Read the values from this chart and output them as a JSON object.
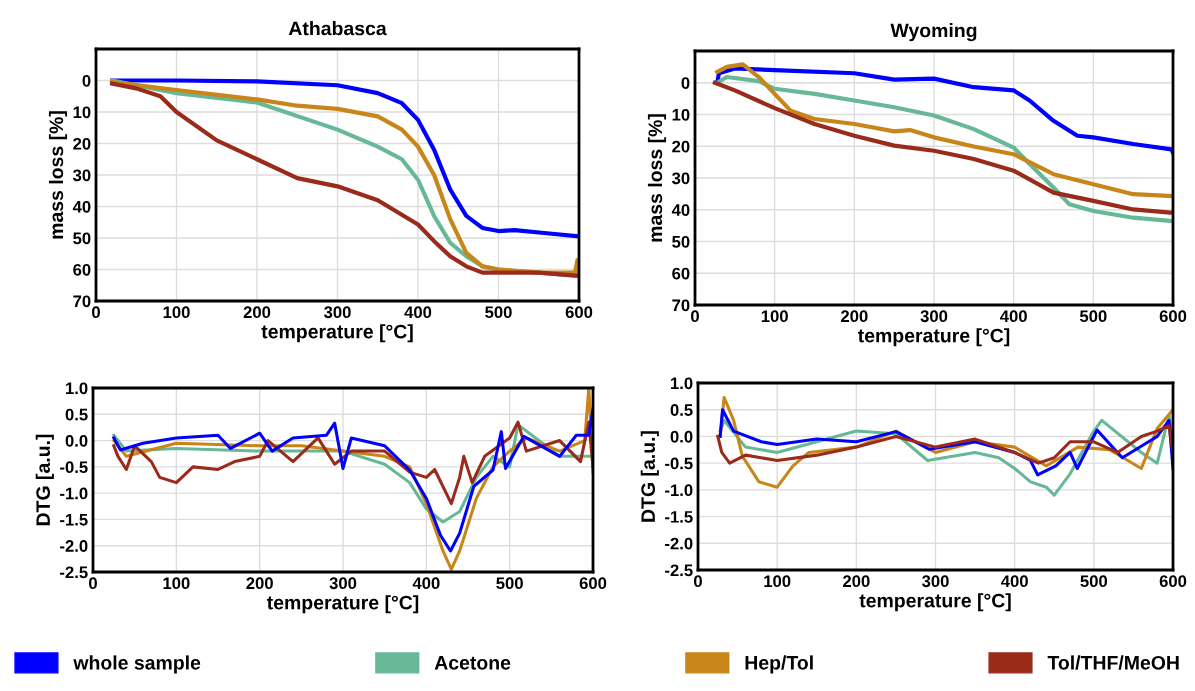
{
  "chart_data": [
    {
      "type": "line",
      "title": "Athabasca",
      "xlabel": "temperature [°C]",
      "ylabel": "mass loss [%]",
      "xlim": [
        0,
        600
      ],
      "xticks": [
        0,
        100,
        200,
        300,
        400,
        500,
        600
      ],
      "ylim": [
        70,
        -10
      ],
      "yticks": [
        0,
        10,
        20,
        30,
        40,
        50,
        60,
        70
      ],
      "grid": true,
      "legend": "bottom",
      "series": [
        {
          "name": "whole sample",
          "color": "#0000ff",
          "x": [
            20,
            100,
            200,
            300,
            350,
            380,
            400,
            420,
            440,
            460,
            480,
            500,
            520,
            560,
            600
          ],
          "values": [
            0,
            0,
            0.3,
            1.5,
            4,
            7.2,
            12.5,
            22,
            34.6,
            43,
            46.8,
            47.8,
            47.5,
            48.5,
            49.5
          ]
        },
        {
          "name": "Acetone",
          "color": "#66b896",
          "x": [
            20,
            100,
            200,
            300,
            350,
            380,
            400,
            420,
            440,
            460,
            480,
            500,
            600
          ],
          "values": [
            0,
            4,
            7,
            15.6,
            21,
            25,
            31.5,
            43,
            51.5,
            55.8,
            59,
            60,
            62
          ]
        },
        {
          "name": "Hep/Tol",
          "color": "#c8861a",
          "x": [
            20,
            100,
            200,
            250,
            300,
            350,
            380,
            400,
            420,
            440,
            460,
            480,
            500,
            550,
            595,
            598,
            600
          ],
          "values": [
            0.5,
            3,
            6,
            8,
            9,
            11.4,
            15.6,
            21,
            30,
            44,
            54.7,
            59,
            60,
            61,
            61,
            57,
            61
          ]
        },
        {
          "name": "Tol/THF/MeOH",
          "color": "#9a2a1a",
          "x": [
            20,
            50,
            80,
            100,
            150,
            200,
            250,
            300,
            350,
            400,
            420,
            440,
            460,
            480,
            500,
            550,
            600
          ],
          "values": [
            1,
            2.5,
            5,
            10,
            19,
            25,
            31,
            33.6,
            38,
            45.7,
            51,
            55.8,
            59,
            61,
            61,
            61,
            62
          ]
        }
      ]
    },
    {
      "type": "line",
      "title": "Wyoming",
      "xlabel": "temperature [°C]",
      "ylabel": "mass loss [%]",
      "xlim": [
        0,
        600
      ],
      "xticks": [
        0,
        100,
        200,
        300,
        400,
        500,
        600
      ],
      "ylim": [
        70,
        -10
      ],
      "yticks": [
        0,
        10,
        20,
        30,
        40,
        50,
        60,
        70
      ],
      "grid": true,
      "series": [
        {
          "color": "#0000ff",
          "x": [
            28,
            30,
            50,
            100,
            200,
            250,
            300,
            350,
            400,
            420,
            450,
            480,
            500,
            550,
            598,
            600
          ],
          "values": [
            0,
            -3,
            -4.5,
            -4,
            -3,
            -1,
            -1.3,
            1.4,
            2.4,
            5.6,
            12,
            16.7,
            17.2,
            19.3,
            21,
            22
          ]
        },
        {
          "color": "#66b896",
          "x": [
            28,
            40,
            80,
            100,
            150,
            200,
            250,
            300,
            350,
            400,
            420,
            450,
            470,
            500,
            550,
            600
          ],
          "values": [
            0,
            -1.8,
            -0.5,
            1.9,
            3.5,
            5.6,
            7.7,
            10.3,
            14.6,
            20.4,
            25.6,
            33,
            38.3,
            40.4,
            42.5,
            43.6
          ]
        },
        {
          "color": "#c8861a",
          "x": [
            28,
            40,
            60,
            80,
            100,
            120,
            150,
            200,
            250,
            270,
            300,
            350,
            400,
            450,
            500,
            550,
            600
          ],
          "values": [
            -3.4,
            -5,
            -5.8,
            -1.8,
            3.5,
            8.8,
            11.4,
            13,
            15.3,
            14.9,
            17.2,
            20.1,
            22.5,
            28.8,
            32,
            35.1,
            35.7
          ]
        },
        {
          "color": "#9a2a1a",
          "x": [
            25,
            50,
            100,
            150,
            200,
            250,
            300,
            350,
            400,
            450,
            500,
            550,
            600
          ],
          "values": [
            0,
            2.4,
            8,
            13,
            16.7,
            19.8,
            21.4,
            24,
            27.7,
            34.6,
            37.2,
            39.9,
            41
          ]
        }
      ]
    },
    {
      "type": "line",
      "xlabel": "temperature [°C]",
      "ylabel": "DTG [a.u.]",
      "xlim": [
        0,
        600
      ],
      "xticks": [
        0,
        100,
        200,
        300,
        400,
        500,
        600
      ],
      "ylim": [
        -2.5,
        1.0
      ],
      "yticks": [
        {
          "value": 1.0,
          "label": "1.0"
        },
        {
          "value": 0.5,
          "label": "0.5"
        },
        {
          "value": 0.0,
          "label": "0.0"
        },
        {
          "value": -0.5,
          "label": "-0.5"
        },
        {
          "value": -1.0,
          "label": "-1.0"
        },
        {
          "value": -1.5,
          "label": "-1.5"
        },
        {
          "value": -2.0,
          "label": "-2.0"
        },
        {
          "value": -2.5,
          "label": "-2.5"
        }
      ],
      "grid": true,
      "series": [
        {
          "color": "#66b896",
          "x": [
            25,
            40,
            100,
            200,
            300,
            350,
            380,
            400,
            420,
            430,
            440,
            460,
            480,
            500,
            510,
            560,
            600
          ],
          "values": [
            0.1,
            -0.2,
            -0.15,
            -0.2,
            -0.2,
            -0.45,
            -0.8,
            -1.3,
            -1.55,
            -1.45,
            -1.35,
            -0.7,
            -0.3,
            -0.5,
            0.3,
            -0.3,
            -0.3
          ]
        },
        {
          "color": "#c8861a",
          "x": [
            25,
            40,
            100,
            200,
            250,
            300,
            350,
            380,
            400,
            420,
            430,
            440,
            460,
            480,
            500,
            520,
            560,
            590,
            595,
            600
          ],
          "values": [
            0,
            -0.3,
            -0.05,
            -0.1,
            -0.1,
            -0.2,
            -0.3,
            -0.5,
            -1.2,
            -2.1,
            -2.45,
            -2.1,
            -1.1,
            -0.5,
            -0.2,
            0.05,
            -0.2,
            0.0,
            1.0,
            -0.6
          ]
        },
        {
          "color": "#9a2a1a",
          "x": [
            25,
            30,
            40,
            50,
            70,
            80,
            100,
            120,
            150,
            170,
            200,
            210,
            240,
            270,
            290,
            310,
            350,
            380,
            400,
            410,
            430,
            440,
            445,
            455,
            470,
            500,
            510,
            520,
            560,
            585,
            595,
            600
          ],
          "values": [
            -0.1,
            -0.3,
            -0.55,
            -0.1,
            -0.4,
            -0.7,
            -0.8,
            -0.5,
            -0.55,
            -0.4,
            -0.3,
            0.0,
            -0.4,
            0.05,
            -0.45,
            -0.2,
            -0.2,
            -0.6,
            -0.7,
            -0.55,
            -1.2,
            -0.7,
            -0.3,
            -0.8,
            -0.3,
            0.05,
            0.35,
            -0.2,
            0.0,
            -0.4,
            0.35,
            -0.5
          ]
        },
        {
          "color": "#0000ff",
          "x": [
            25,
            33,
            60,
            100,
            150,
            165,
            200,
            215,
            240,
            280,
            290,
            300,
            310,
            350,
            380,
            400,
            417,
            429,
            440,
            457,
            480,
            490,
            495,
            517,
            560,
            580,
            595,
            600
          ],
          "values": [
            0.05,
            -0.18,
            -0.05,
            0.05,
            0.1,
            -0.15,
            0.14,
            -0.2,
            0.05,
            0.1,
            0.33,
            -0.53,
            0.05,
            -0.1,
            -0.56,
            -1.1,
            -1.8,
            -2.1,
            -1.76,
            -0.87,
            -0.56,
            0.17,
            -0.53,
            0.08,
            -0.3,
            0.1,
            0.1,
            0.6
          ]
        }
      ]
    },
    {
      "type": "line",
      "xlabel": "temperature [°C]",
      "ylabel": "DTG [a.u.]",
      "xlim": [
        0,
        600
      ],
      "xticks": [
        0,
        100,
        200,
        300,
        400,
        500,
        600
      ],
      "ylim": [
        -2.5,
        1.0
      ],
      "yticks": [
        {
          "value": 1.0,
          "label": "1.0"
        },
        {
          "value": 0.5,
          "label": "0.5"
        },
        {
          "value": 0.0,
          "label": "0.0"
        },
        {
          "value": -0.5,
          "label": "-0.5"
        },
        {
          "value": -1.0,
          "label": "-1.0"
        },
        {
          "value": -1.5,
          "label": "-1.5"
        },
        {
          "value": -2.0,
          "label": "-2.0"
        },
        {
          "value": -2.5,
          "label": "-2.5"
        }
      ],
      "grid": true,
      "series": [
        {
          "color": "#66b896",
          "x": [
            28,
            33,
            60,
            100,
            150,
            200,
            250,
            290,
            350,
            380,
            400,
            420,
            440,
            450,
            470,
            500,
            510,
            560,
            580,
            595,
            600
          ],
          "values": [
            0.1,
            0.3,
            -0.2,
            -0.3,
            -0.1,
            0.1,
            0.05,
            -0.45,
            -0.3,
            -0.4,
            -0.6,
            -0.85,
            -0.95,
            -1.1,
            -0.7,
            0.1,
            0.3,
            -0.3,
            -0.5,
            0.4,
            -0.2
          ]
        },
        {
          "color": "#c8861a",
          "x": [
            28,
            33,
            45,
            56,
            77,
            100,
            120,
            140,
            200,
            250,
            300,
            350,
            400,
            440,
            480,
            520,
            560,
            580,
            600
          ],
          "values": [
            0,
            0.73,
            0.3,
            -0.37,
            -0.85,
            -0.95,
            -0.55,
            -0.3,
            -0.2,
            0.1,
            -0.3,
            -0.1,
            -0.2,
            -0.55,
            -0.2,
            -0.25,
            -0.6,
            0.15,
            0.5
          ]
        },
        {
          "color": "#0000ff",
          "x": [
            28,
            31,
            45,
            80,
            100,
            150,
            200,
            250,
            292,
            350,
            400,
            420,
            429,
            452,
            470,
            479,
            504,
            536,
            580,
            595,
            600
          ],
          "values": [
            0,
            0.5,
            0.1,
            -0.1,
            -0.15,
            -0.05,
            -0.1,
            0.09,
            -0.24,
            -0.1,
            -0.3,
            -0.45,
            -0.72,
            -0.55,
            -0.3,
            -0.6,
            0.12,
            -0.4,
            0.0,
            0.3,
            -0.6
          ]
        },
        {
          "color": "#9a2a1a",
          "x": [
            25,
            30,
            40,
            60,
            100,
            150,
            200,
            250,
            300,
            350,
            400,
            430,
            450,
            470,
            500,
            530,
            560,
            580,
            595,
            600
          ],
          "values": [
            0,
            -0.3,
            -0.5,
            -0.35,
            -0.45,
            -0.35,
            -0.2,
            0.0,
            -0.2,
            -0.05,
            -0.3,
            -0.5,
            -0.4,
            -0.1,
            -0.1,
            -0.3,
            0.0,
            0.1,
            0.2,
            -0.3
          ]
        }
      ]
    }
  ]
}
